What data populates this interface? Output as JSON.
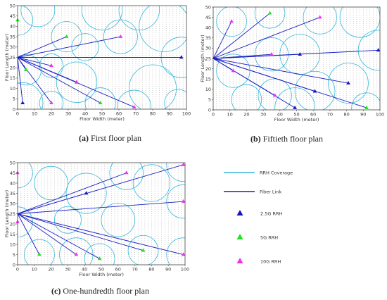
{
  "chart_data": [
    {
      "type": "scatter",
      "xlabel": "Floor Width (meter)",
      "ylabel": "Floor Length (meter)",
      "xlim": [
        0,
        100
      ],
      "ylim": [
        0,
        50
      ],
      "xticks": [
        0,
        10,
        20,
        30,
        40,
        50,
        60,
        70,
        80,
        90,
        100
      ],
      "yticks": [
        0,
        5,
        10,
        15,
        20,
        25,
        30,
        35,
        40,
        45,
        50
      ],
      "caption_label": "(a)",
      "caption_text": " First floor plan",
      "source": [
        0,
        25
      ],
      "rrh": [
        {
          "x": 3,
          "y": 3,
          "band": "2.5G"
        },
        {
          "x": 97,
          "y": 25,
          "band": "2.5G"
        },
        {
          "x": 35,
          "y": 13,
          "band": "2.5G"
        },
        {
          "x": 0,
          "y": 43,
          "band": "5G"
        },
        {
          "x": 5,
          "y": 19,
          "band": "5G"
        },
        {
          "x": 29,
          "y": 35,
          "band": "5G"
        },
        {
          "x": 49,
          "y": 3,
          "band": "5G"
        },
        {
          "x": 20,
          "y": 21,
          "band": "10G"
        },
        {
          "x": 20,
          "y": 3,
          "band": "10G"
        },
        {
          "x": 61,
          "y": 35,
          "band": "10G"
        },
        {
          "x": 69,
          "y": 1,
          "band": "10G"
        },
        {
          "x": 35,
          "y": 13,
          "band": "10G"
        }
      ],
      "coverage": [
        {
          "x": 3,
          "y": 3,
          "r": 12
        },
        {
          "x": 97,
          "y": 25,
          "r": 12
        },
        {
          "x": 35,
          "y": 13,
          "r": 12
        },
        {
          "x": 0,
          "y": 43,
          "r": 9
        },
        {
          "x": 5,
          "y": 19,
          "r": 9
        },
        {
          "x": 29,
          "y": 35,
          "r": 9
        },
        {
          "x": 49,
          "y": 3,
          "r": 9
        },
        {
          "x": 20,
          "y": 21,
          "r": 7
        },
        {
          "x": 20,
          "y": 3,
          "r": 7
        },
        {
          "x": 61,
          "y": 35,
          "r": 10
        },
        {
          "x": 69,
          "y": 1,
          "r": 10
        },
        {
          "x": 87,
          "y": 40,
          "r": 15
        },
        {
          "x": 72,
          "y": 48,
          "r": 12
        },
        {
          "x": 12,
          "y": 48,
          "r": 10
        },
        {
          "x": 50,
          "y": 48,
          "r": 12
        },
        {
          "x": 80,
          "y": 10,
          "r": 14
        },
        {
          "x": 40,
          "y": 30,
          "r": 8
        },
        {
          "x": 95,
          "y": 3,
          "r": 8
        }
      ]
    },
    {
      "type": "scatter",
      "xlabel": "Floor Width (meter)",
      "ylabel": "Floor Length (meter)",
      "xlim": [
        0,
        100
      ],
      "ylim": [
        0,
        50
      ],
      "xticks": [
        0,
        10,
        20,
        30,
        40,
        50,
        60,
        70,
        80,
        90,
        100
      ],
      "yticks": [
        0,
        5,
        10,
        15,
        20,
        25,
        30,
        35,
        40,
        45,
        50
      ],
      "caption_label": "(b)",
      "caption_text": " Fiftieth floor plan",
      "source": [
        0,
        25
      ],
      "rrh": [
        {
          "x": 52,
          "y": 27,
          "band": "2.5G"
        },
        {
          "x": 99,
          "y": 29,
          "band": "2.5G"
        },
        {
          "x": 81,
          "y": 13,
          "band": "2.5G"
        },
        {
          "x": 61,
          "y": 9,
          "band": "2.5G"
        },
        {
          "x": 49,
          "y": 1,
          "band": "2.5G"
        },
        {
          "x": 34,
          "y": 47,
          "band": "5G"
        },
        {
          "x": 92,
          "y": 1,
          "band": "5G"
        },
        {
          "x": 11,
          "y": 43,
          "band": "10G"
        },
        {
          "x": 64,
          "y": 45,
          "band": "10G"
        },
        {
          "x": 35,
          "y": 27,
          "band": "10G"
        },
        {
          "x": 12,
          "y": 19,
          "band": "10G"
        },
        {
          "x": 37,
          "y": 7,
          "band": "10G"
        }
      ],
      "coverage": [
        {
          "x": 11,
          "y": 43,
          "r": 9
        },
        {
          "x": 34,
          "y": 47,
          "r": 9
        },
        {
          "x": 64,
          "y": 45,
          "r": 10
        },
        {
          "x": 52,
          "y": 27,
          "r": 12
        },
        {
          "x": 99,
          "y": 29,
          "r": 12
        },
        {
          "x": 81,
          "y": 13,
          "r": 12
        },
        {
          "x": 61,
          "y": 9,
          "r": 12
        },
        {
          "x": 49,
          "y": 1,
          "r": 12
        },
        {
          "x": 92,
          "y": 1,
          "r": 9
        },
        {
          "x": 35,
          "y": 27,
          "r": 10
        },
        {
          "x": 12,
          "y": 19,
          "r": 10
        },
        {
          "x": 37,
          "y": 7,
          "r": 10
        },
        {
          "x": 88,
          "y": 45,
          "r": 12
        },
        {
          "x": 20,
          "y": 5,
          "r": 9
        }
      ]
    },
    {
      "type": "scatter",
      "xlabel": "Floor Width (meter)",
      "ylabel": "Floor Length (meter)",
      "xlim": [
        0,
        100
      ],
      "ylim": [
        0,
        50
      ],
      "xticks": [
        0,
        10,
        20,
        30,
        40,
        50,
        60,
        70,
        80,
        90,
        100
      ],
      "yticks": [
        0,
        5,
        10,
        15,
        20,
        25,
        30,
        35,
        40,
        45,
        50
      ],
      "caption_label": "(c)",
      "caption_text": " One-hundredth floor plan",
      "source": [
        0,
        25
      ],
      "rrh": [
        {
          "x": 41,
          "y": 35,
          "band": "2.5G"
        },
        {
          "x": 13,
          "y": 5,
          "band": "5G"
        },
        {
          "x": 49,
          "y": 3,
          "band": "5G"
        },
        {
          "x": 75,
          "y": 7,
          "band": "5G"
        },
        {
          "x": 0,
          "y": 45,
          "band": "10G"
        },
        {
          "x": 0,
          "y": 21,
          "band": "10G"
        },
        {
          "x": 65,
          "y": 45,
          "band": "10G"
        },
        {
          "x": 99,
          "y": 49,
          "band": "10G"
        },
        {
          "x": 99,
          "y": 31,
          "band": "10G"
        },
        {
          "x": 35,
          "y": 5,
          "band": "10G"
        },
        {
          "x": 99,
          "y": 5,
          "band": "10G"
        }
      ],
      "coverage": [
        {
          "x": 0,
          "y": 45,
          "r": 9
        },
        {
          "x": 0,
          "y": 21,
          "r": 9
        },
        {
          "x": 41,
          "y": 35,
          "r": 12
        },
        {
          "x": 13,
          "y": 5,
          "r": 9
        },
        {
          "x": 49,
          "y": 3,
          "r": 9
        },
        {
          "x": 75,
          "y": 7,
          "r": 9
        },
        {
          "x": 65,
          "y": 45,
          "r": 10
        },
        {
          "x": 99,
          "y": 49,
          "r": 10
        },
        {
          "x": 99,
          "y": 31,
          "r": 10
        },
        {
          "x": 35,
          "y": 5,
          "r": 10
        },
        {
          "x": 99,
          "y": 5,
          "r": 10
        },
        {
          "x": 20,
          "y": 40,
          "r": 10
        },
        {
          "x": 80,
          "y": 40,
          "r": 11
        },
        {
          "x": 60,
          "y": 22,
          "r": 10
        },
        {
          "x": 30,
          "y": 22,
          "r": 8
        }
      ]
    }
  ],
  "legend": {
    "coverage": "RRH Coverage",
    "fiber": "Fiber Link",
    "g25": "2.5G RRH",
    "g5": "5G RRH",
    "g10": "10G RRH"
  },
  "colors": {
    "coverage": "#35b6d8",
    "fiber": "#1a1fc4",
    "g25": "#1515b5",
    "g5": "#22e022",
    "g10": "#f030f0",
    "dots": "#9a9a9a",
    "frame": "#444444"
  }
}
